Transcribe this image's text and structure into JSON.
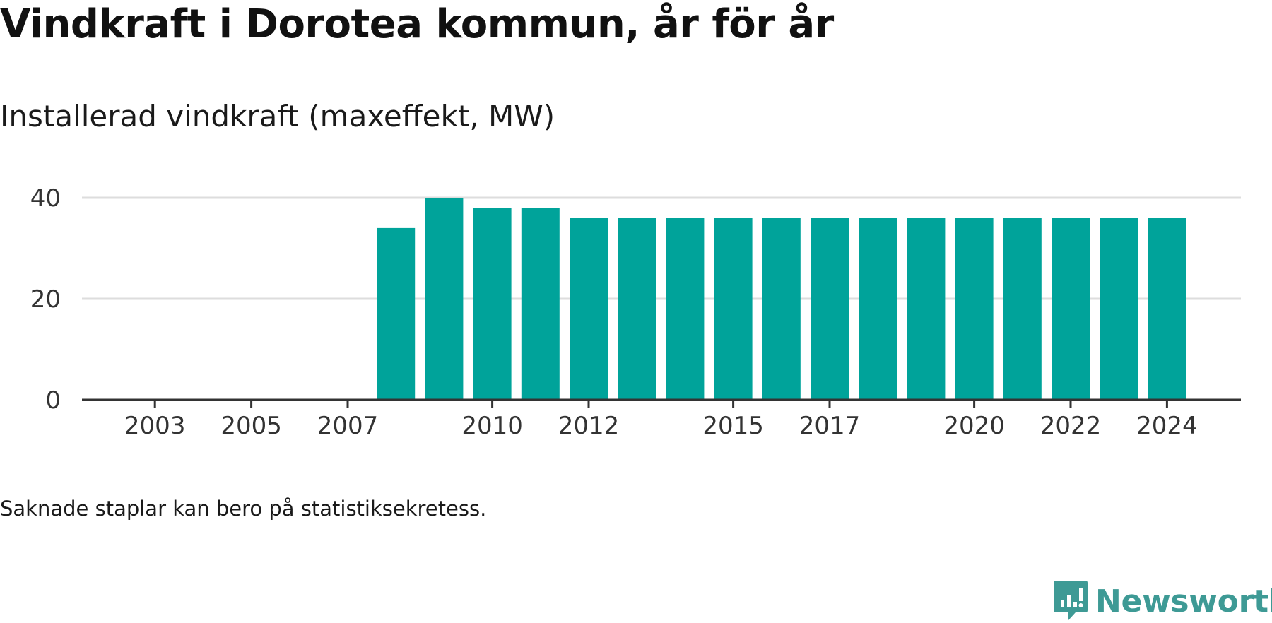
{
  "title": "Vindkraft i Dorotea kommun, år för år",
  "subtitle": "Installerad vindkraft (maxeffekt, MW)",
  "note": "Saknade staplar kan bero på statistiksekretess.",
  "brand": {
    "name": "Newsworthy",
    "icon": "newsworthy-logo-icon",
    "color": "#3e9a95"
  },
  "chart_data": {
    "type": "bar",
    "categories": [
      "2002",
      "2003",
      "2004",
      "2005",
      "2006",
      "2007",
      "2008",
      "2009",
      "2010",
      "2011",
      "2012",
      "2013",
      "2014",
      "2015",
      "2016",
      "2017",
      "2018",
      "2019",
      "2020",
      "2021",
      "2022",
      "2023",
      "2024"
    ],
    "values": [
      0,
      0,
      0,
      0,
      0,
      0,
      34,
      40,
      38,
      38,
      36,
      36,
      36,
      36,
      36,
      36,
      36,
      36,
      36,
      36,
      36,
      36,
      36
    ],
    "tick_labels": [
      "2003",
      "2005",
      "2007",
      "2010",
      "2012",
      "2015",
      "2017",
      "2020",
      "2022",
      "2024"
    ],
    "y_ticks": [
      0,
      20,
      40
    ],
    "ylim": [
      0,
      40
    ],
    "xlabel": "",
    "ylabel": "",
    "bar_color": "#00a39a",
    "grid": true
  }
}
